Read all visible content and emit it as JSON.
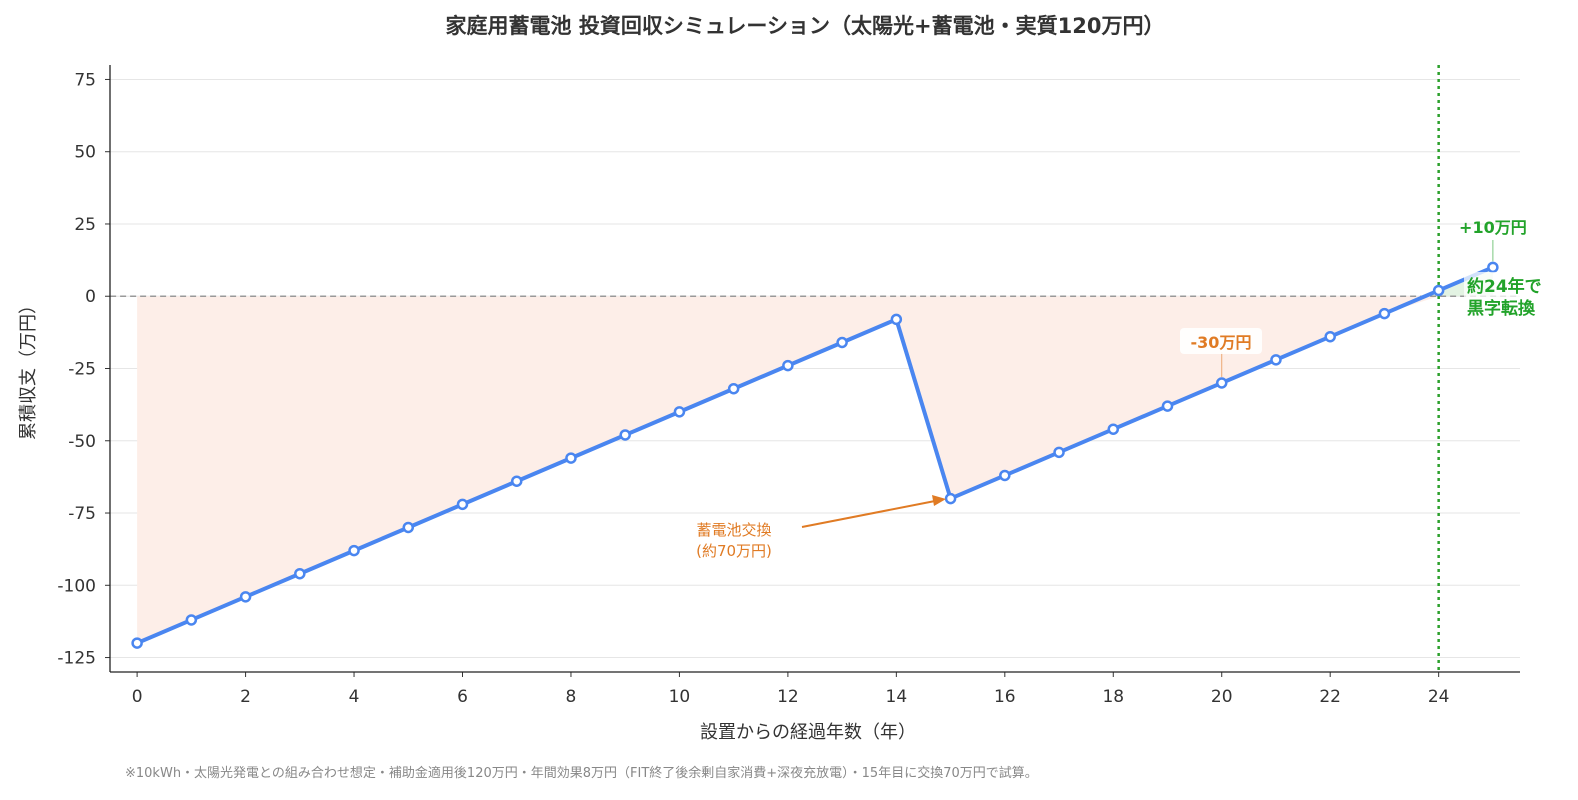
{
  "chart_data": {
    "type": "line",
    "title": "家庭用蓄電池 投資回収シミュレーション（太陽光+蓄電池・実質120万円）",
    "xlabel": "設置からの経過年数（年）",
    "ylabel": "累積収支（万円）",
    "xlim": [
      -0.5,
      25.5
    ],
    "ylim": [
      -130,
      80
    ],
    "xticks": [
      0,
      2,
      4,
      6,
      8,
      10,
      12,
      14,
      16,
      18,
      20,
      22,
      24
    ],
    "yticks": [
      -125,
      -100,
      -75,
      -50,
      -25,
      0,
      25,
      50,
      75
    ],
    "grid": "horizontal",
    "x": [
      0,
      1,
      2,
      3,
      4,
      5,
      6,
      7,
      8,
      9,
      10,
      11,
      12,
      13,
      14,
      15,
      16,
      17,
      18,
      19,
      20,
      21,
      22,
      23,
      24,
      25
    ],
    "values": [
      -120,
      -112,
      -104,
      -96,
      -88,
      -80,
      -72,
      -64,
      -56,
      -48,
      -40,
      -32,
      -24,
      -16,
      -8,
      -70,
      -62,
      -54,
      -46,
      -38,
      -30,
      -22,
      -14,
      -6,
      2,
      10
    ],
    "breakeven_year": 24,
    "annotations": {
      "replace_line1": "蓄電池交換",
      "replace_line2": "(約70万円)",
      "minus30": "-30万円",
      "plus10": "+10万円",
      "breakeven_line1": "約24年で",
      "breakeven_line2": "黒字転換"
    },
    "colors": {
      "line": "#4a86f0",
      "negative_fill": "#fdeee8",
      "positive_fill": "#e3f3e3",
      "breakeven": "#2ca02c",
      "annotation_orange": "#e07b24",
      "annotation_green": "#22a32a"
    }
  },
  "footnote": "※10kWh・太陽光発電との組み合わせ想定・補助金適用後120万円・年間効果8万円（FIT終了後余剰自家消費+深夜充放電）・15年目に交換70万円で試算。"
}
